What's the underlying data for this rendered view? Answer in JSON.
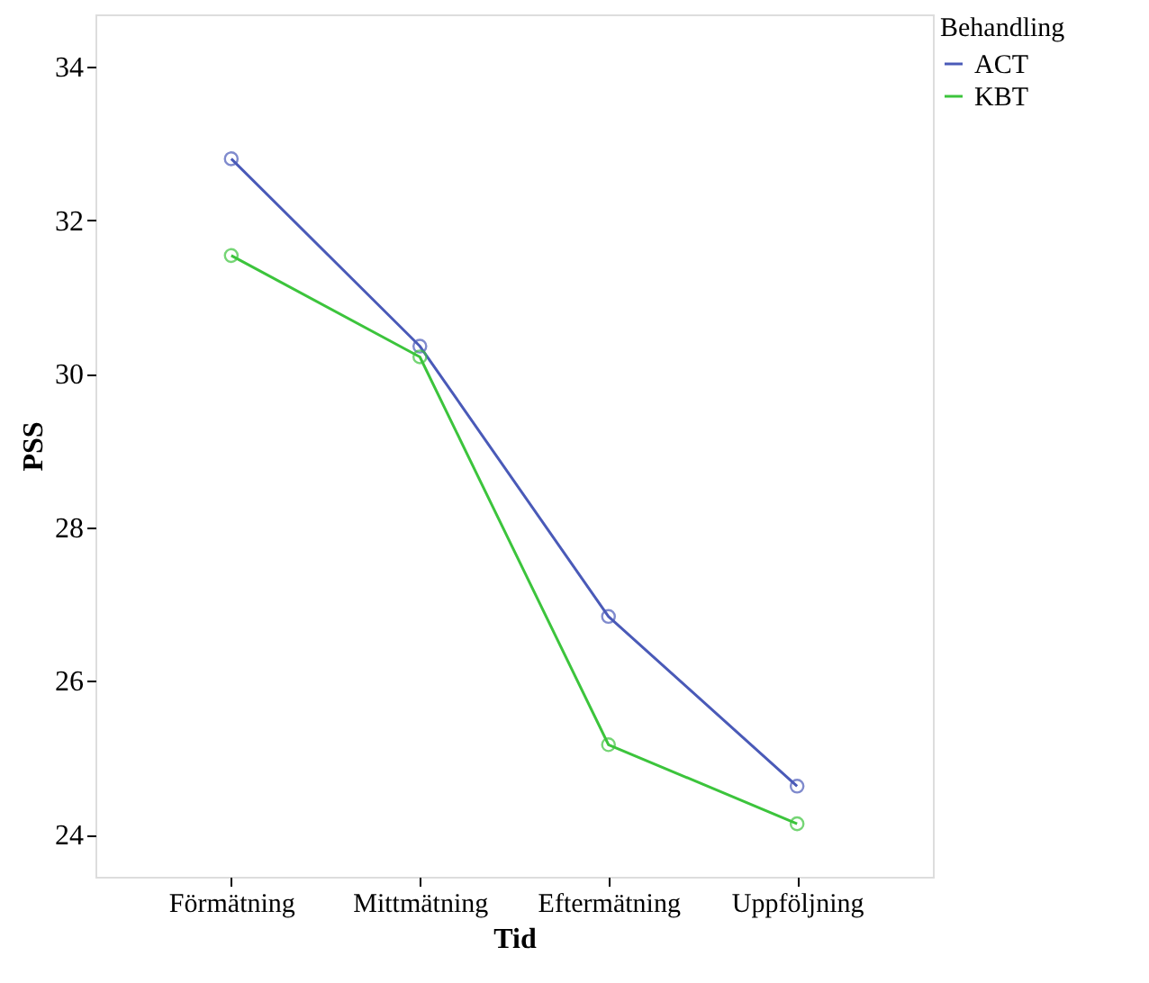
{
  "chart_data": {
    "type": "line",
    "xlabel": "Tid",
    "ylabel": "PSS",
    "legend_title": "Behandling",
    "legend": "top right",
    "marker": "circle",
    "grid": false,
    "categories": [
      "Förmätning",
      "Mittmätning",
      "Eftermätning",
      "Uppföljning"
    ],
    "series": [
      {
        "name": "ACT",
        "color": "#4a5ab8",
        "values": [
          32.8,
          30.36,
          26.84,
          24.63
        ]
      },
      {
        "name": "KBT",
        "color": "#3cc43c",
        "values": [
          31.54,
          30.22,
          25.17,
          24.14
        ]
      }
    ],
    "ylim": [
      23.45,
      34.68
    ],
    "yticks": [
      24,
      26,
      28,
      30,
      32,
      34
    ]
  }
}
